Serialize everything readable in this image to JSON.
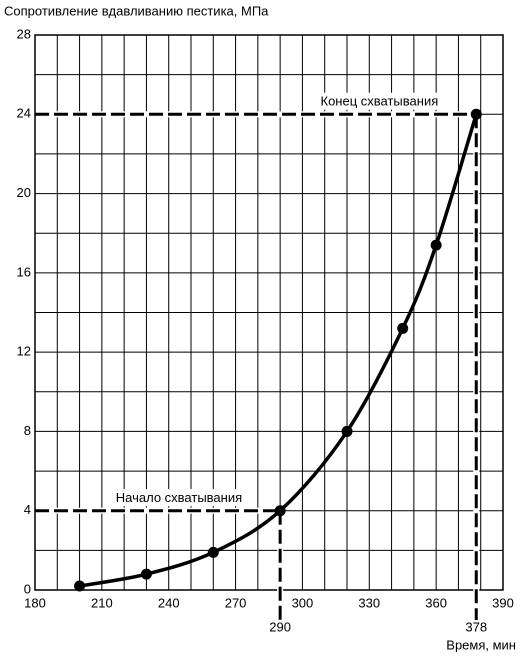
{
  "chart_data": {
    "type": "line",
    "y_label": "Сопротивление вдавливанию пестика, МПа",
    "x_label": "Время, мин",
    "x": [
      200,
      230,
      260,
      290,
      320,
      345,
      360,
      378
    ],
    "series": [
      {
        "color": "#000000",
        "values": [
          0.2,
          0.8,
          1.9,
          4,
          8,
          13.2,
          17.4,
          24
        ]
      }
    ],
    "xlim": [
      180,
      390
    ],
    "xticks": [
      180,
      210,
      240,
      270,
      300,
      330,
      360,
      390
    ],
    "x_minor_grid": [
      190,
      200,
      220,
      230,
      250,
      260,
      280,
      290,
      310,
      320,
      340,
      350,
      370,
      380
    ],
    "ylim": [
      0,
      28
    ],
    "yticks": [
      0,
      4,
      8,
      12,
      16,
      20,
      24,
      28
    ],
    "y_minor_grid": [
      2,
      6,
      10,
      14,
      18,
      22,
      26
    ],
    "grid": true,
    "annotations": [
      {
        "text": "Начало схватывания",
        "x": 290,
        "y": 4
      },
      {
        "text": "Конец схватывания",
        "x": 378,
        "y": 24
      }
    ]
  }
}
